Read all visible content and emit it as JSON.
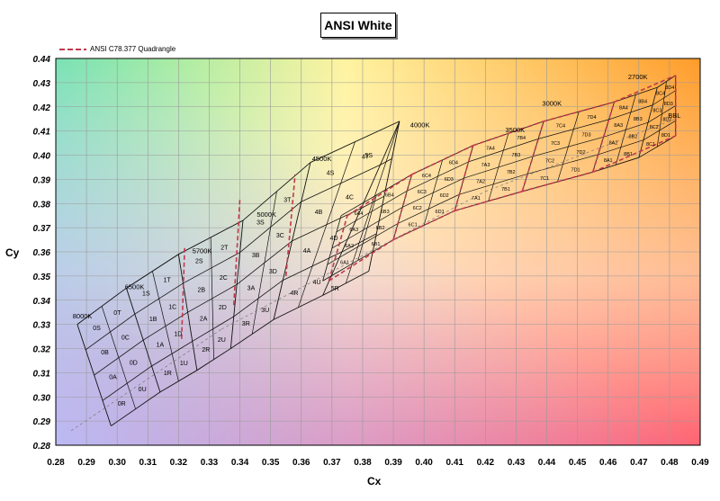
{
  "chart_data": {
    "type": "line",
    "title": "ANSI White",
    "xlabel": "Cx",
    "ylabel": "Cy",
    "xlim": [
      0.28,
      0.49
    ],
    "ylim": [
      0.28,
      0.44
    ],
    "x_ticks": [
      "0.28",
      "0.29",
      "0.30",
      "0.31",
      "0.32",
      "0.33",
      "0.34",
      "0.35",
      "0.36",
      "0.37",
      "0.38",
      "0.39",
      "0.40",
      "0.41",
      "0.42",
      "0.43",
      "0.44",
      "0.45",
      "0.46",
      "0.47",
      "0.48",
      "0.49"
    ],
    "y_ticks": [
      "0.28",
      "0.29",
      "0.30",
      "0.31",
      "0.32",
      "0.33",
      "0.34",
      "0.35",
      "0.36",
      "0.37",
      "0.38",
      "0.39",
      "0.40",
      "0.41",
      "0.42",
      "0.43",
      "0.44"
    ],
    "grid": true,
    "legend": {
      "position": "top-left",
      "entries": [
        {
          "name": "ANSI C78.377 Quadrangle",
          "color": "#c0394b",
          "style": "dashed"
        }
      ]
    },
    "annotations": [
      {
        "text": "8000K",
        "x": 0.2855,
        "y": 0.3325
      },
      {
        "text": "6500K",
        "x": 0.3025,
        "y": 0.3445
      },
      {
        "text": "5700K",
        "x": 0.3245,
        "y": 0.3595
      },
      {
        "text": "5000K",
        "x": 0.3455,
        "y": 0.3745
      },
      {
        "text": "4500K",
        "x": 0.3635,
        "y": 0.3975
      },
      {
        "text": "4000K",
        "x": 0.3955,
        "y": 0.4115
      },
      {
        "text": "3500K",
        "x": 0.4265,
        "y": 0.4095
      },
      {
        "text": "3000K",
        "x": 0.4385,
        "y": 0.4205
      },
      {
        "text": "2700K",
        "x": 0.4665,
        "y": 0.4315
      },
      {
        "text": "BBL",
        "x": 0.4795,
        "y": 0.4155
      }
    ],
    "regions": [
      "0S",
      "0T",
      "0B",
      "0C",
      "0A",
      "0D",
      "0R",
      "0U",
      "1T",
      "1S",
      "1B",
      "1C",
      "1A",
      "1D",
      "1R",
      "1U",
      "2S",
      "2T",
      "2B",
      "2C",
      "2A",
      "2D",
      "2R",
      "2U",
      "3S",
      "3T",
      "3B",
      "3C",
      "3A",
      "3D",
      "3R",
      "3U",
      "4S",
      "4T",
      "4B",
      "4C",
      "4A",
      "4D",
      "4R",
      "4U",
      "5S",
      "5B1",
      "5B2",
      "5B3",
      "5B4",
      "5A1",
      "5A2",
      "5A3",
      "5A4",
      "5C1",
      "5C2",
      "5C3",
      "5C4",
      "5D1",
      "5D2",
      "5D3",
      "5D4",
      "5R",
      "6A1",
      "6A2",
      "6A3",
      "6A4",
      "6B1",
      "6B2",
      "6B3",
      "6B4",
      "6C1",
      "6C2",
      "6C3",
      "6C4",
      "6D1",
      "6D2",
      "6D3",
      "6D4",
      "7A1",
      "7A2",
      "7A3",
      "7A4",
      "7B1",
      "7B2",
      "7B3",
      "7B4",
      "7C1",
      "7C2",
      "7C3",
      "7C4",
      "7D1",
      "7D2",
      "7D3",
      "7D4",
      "8A1",
      "8A2",
      "8A3",
      "8A4",
      "8B1",
      "8B2",
      "8B3",
      "8B4",
      "8C1",
      "8C2",
      "8C3",
      "8C4",
      "8D1",
      "8D2",
      "8D3",
      "8D4"
    ]
  }
}
